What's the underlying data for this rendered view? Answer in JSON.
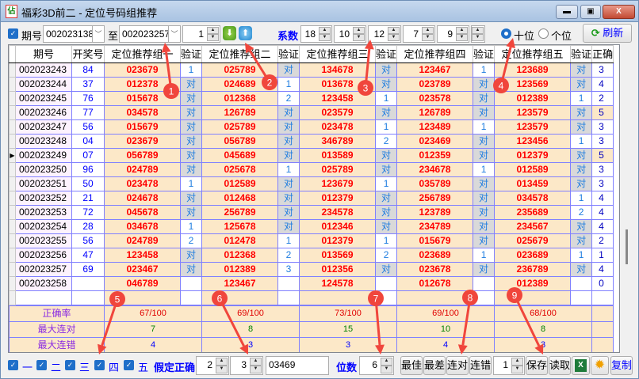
{
  "window": {
    "title": "福彩3D前二 - 定位号码组推荐",
    "icon": "lottery-app-icon",
    "minimize": "▬",
    "maximize": "▣",
    "close": "X"
  },
  "toolbar": {
    "period_checked": true,
    "period_label": "期号",
    "from_value": "002023138",
    "to_label": "至",
    "to_value": "002023257",
    "step_value": "1",
    "down_icon": "green-down-arrow-icon",
    "up_icon": "blue-up-arrow-icon",
    "coef_label": "系数",
    "coefs": [
      "18",
      "10",
      "12",
      "7",
      "9"
    ],
    "radio_tens": "十位",
    "radio_units": "个位",
    "selected_position": "十位",
    "refresh_label": "刷新"
  },
  "table": {
    "headers": [
      "期号",
      "开奖号",
      "定位推荐组一",
      "验证",
      "定位推荐组二",
      "验证",
      "定位推荐组三",
      "验证",
      "定位推荐组四",
      "验证",
      "定位推荐组五",
      "验证",
      "正确"
    ],
    "rows": [
      {
        "id": "002023243",
        "kj": "84",
        "g": [
          [
            "023679",
            "1"
          ],
          [
            "025789",
            "对"
          ],
          [
            "134678",
            "对"
          ],
          [
            "123467",
            "1"
          ],
          [
            "123689",
            "对"
          ]
        ],
        "correct": "3"
      },
      {
        "id": "002023244",
        "kj": "37",
        "g": [
          [
            "012378",
            "对"
          ],
          [
            "024689",
            "1"
          ],
          [
            "013678",
            "对"
          ],
          [
            "023789",
            "对"
          ],
          [
            "123569",
            "对"
          ]
        ],
        "correct": "4"
      },
      {
        "id": "002023245",
        "kj": "76",
        "g": [
          [
            "015678",
            "对"
          ],
          [
            "012368",
            "2"
          ],
          [
            "123458",
            "1"
          ],
          [
            "023578",
            "对"
          ],
          [
            "012389",
            "1"
          ]
        ],
        "correct": "2"
      },
      {
        "id": "002023246",
        "kj": "77",
        "g": [
          [
            "034578",
            "对"
          ],
          [
            "126789",
            "对"
          ],
          [
            "023579",
            "对"
          ],
          [
            "126789",
            "对"
          ],
          [
            "123579",
            "对"
          ]
        ],
        "correct": "5"
      },
      {
        "id": "002023247",
        "kj": "56",
        "g": [
          [
            "015679",
            "对"
          ],
          [
            "025789",
            "对"
          ],
          [
            "023478",
            "1"
          ],
          [
            "123489",
            "1"
          ],
          [
            "123579",
            "对"
          ]
        ],
        "correct": "3"
      },
      {
        "id": "002023248",
        "kj": "04",
        "g": [
          [
            "023679",
            "对"
          ],
          [
            "056789",
            "对"
          ],
          [
            "346789",
            "2"
          ],
          [
            "023469",
            "对"
          ],
          [
            "123456",
            "1"
          ]
        ],
        "correct": "3"
      },
      {
        "id": "002023249",
        "kj": "07",
        "g": [
          [
            "056789",
            "对"
          ],
          [
            "045689",
            "对"
          ],
          [
            "013589",
            "对"
          ],
          [
            "012359",
            "对"
          ],
          [
            "012379",
            "对"
          ]
        ],
        "correct": "5",
        "current": true
      },
      {
        "id": "002023250",
        "kj": "96",
        "g": [
          [
            "024789",
            "对"
          ],
          [
            "025678",
            "1"
          ],
          [
            "025789",
            "对"
          ],
          [
            "234678",
            "1"
          ],
          [
            "012589",
            "对"
          ]
        ],
        "correct": "3"
      },
      {
        "id": "002023251",
        "kj": "50",
        "g": [
          [
            "023478",
            "1"
          ],
          [
            "012589",
            "对"
          ],
          [
            "123679",
            "1"
          ],
          [
            "035789",
            "对"
          ],
          [
            "013459",
            "对"
          ]
        ],
        "correct": "3"
      },
      {
        "id": "002023252",
        "kj": "21",
        "g": [
          [
            "024678",
            "对"
          ],
          [
            "012468",
            "对"
          ],
          [
            "012379",
            "对"
          ],
          [
            "256789",
            "对"
          ],
          [
            "034578",
            "1"
          ]
        ],
        "correct": "4"
      },
      {
        "id": "002023253",
        "kj": "72",
        "g": [
          [
            "045678",
            "对"
          ],
          [
            "256789",
            "对"
          ],
          [
            "234578",
            "对"
          ],
          [
            "123789",
            "对"
          ],
          [
            "235689",
            "2"
          ]
        ],
        "correct": "4"
      },
      {
        "id": "002023254",
        "kj": "28",
        "g": [
          [
            "034678",
            "1"
          ],
          [
            "125678",
            "对"
          ],
          [
            "012346",
            "对"
          ],
          [
            "234789",
            "对"
          ],
          [
            "234567",
            "对"
          ]
        ],
        "correct": "4"
      },
      {
        "id": "002023255",
        "kj": "56",
        "g": [
          [
            "024789",
            "2"
          ],
          [
            "012478",
            "1"
          ],
          [
            "012379",
            "1"
          ],
          [
            "015679",
            "对"
          ],
          [
            "025679",
            "对"
          ]
        ],
        "correct": "2"
      },
      {
        "id": "002023256",
        "kj": "47",
        "g": [
          [
            "123458",
            "对"
          ],
          [
            "012368",
            "2"
          ],
          [
            "013569",
            "2"
          ],
          [
            "023689",
            "1"
          ],
          [
            "023689",
            "1"
          ]
        ],
        "correct": "1"
      },
      {
        "id": "002023257",
        "kj": "69",
        "g": [
          [
            "023467",
            "对"
          ],
          [
            "012389",
            "3"
          ],
          [
            "012356",
            "对"
          ],
          [
            "023678",
            "对"
          ],
          [
            "236789",
            "对"
          ]
        ],
        "correct": "4"
      },
      {
        "id": "002023258",
        "kj": "",
        "g": [
          [
            "046789",
            ""
          ],
          [
            "123467",
            ""
          ],
          [
            "124578",
            ""
          ],
          [
            "012678",
            ""
          ],
          [
            "012389",
            ""
          ]
        ],
        "correct": "0"
      }
    ]
  },
  "summary": {
    "rows": [
      {
        "label": "正确率",
        "values": [
          "67/100",
          "69/100",
          "73/100",
          "69/100",
          "68/100"
        ],
        "color": "#e00000"
      },
      {
        "label": "最大连对",
        "values": [
          "7",
          "8",
          "15",
          "10",
          "8"
        ],
        "color": "#008000"
      },
      {
        "label": "最大连错",
        "values": [
          "4",
          "3",
          "3",
          "4",
          "3"
        ],
        "color": "#0000ff"
      }
    ]
  },
  "bottom": {
    "groups": [
      "一",
      "二",
      "三",
      "四",
      "五"
    ],
    "assume_label": "假定正确",
    "assume_from": "2",
    "assume_to": "3",
    "digits_value": "03469",
    "digits_label": "位数",
    "digits_count": "6",
    "btn_best": "最佳",
    "btn_worst": "最差",
    "btn_consec_right": "连对",
    "btn_consec_wrong": "连错",
    "count_value": "1",
    "btn_save": "保存",
    "btn_load": "读取",
    "excel_icon": "excel-icon",
    "settings_icon": "gear-icon",
    "btn_copy": "复制"
  },
  "annotations": [
    "1",
    "2",
    "3",
    "4",
    "5",
    "6",
    "7",
    "8",
    "9"
  ]
}
